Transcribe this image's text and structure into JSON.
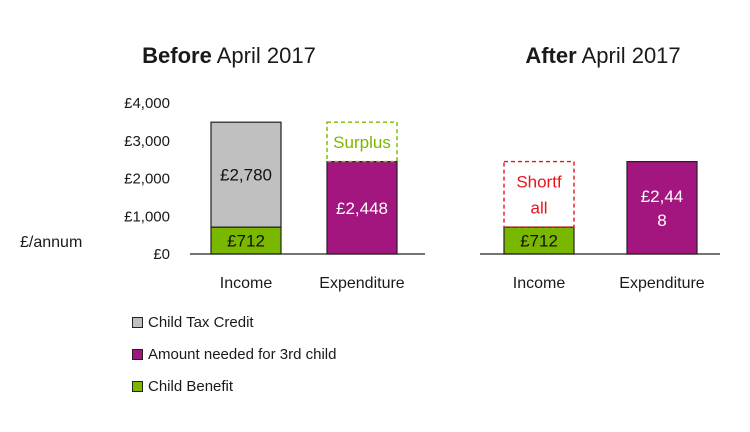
{
  "colors": {
    "child_tax_credit": "#c0c0c0",
    "amount_needed": "#a3157f",
    "child_benefit": "#7ab800",
    "surplus": "#7ab800",
    "shortfall": "#e8141c"
  },
  "y_axis_title": "£/annum",
  "chart_data": [
    {
      "type": "bar",
      "stacked": true,
      "title_bold": "Before",
      "title_rest": " April 2017",
      "categories": [
        "Income",
        "Expenditure"
      ],
      "ylim": [
        0,
        4000
      ],
      "yticks": [
        "£4,000",
        "£3,000",
        "£2,000",
        "£1,000",
        "£0"
      ],
      "series": [
        {
          "name": "Child Benefit",
          "values": [
            712,
            0
          ],
          "labels": [
            "£712",
            ""
          ]
        },
        {
          "name": "Child Tax Credit",
          "values": [
            2780,
            0
          ],
          "labels": [
            "£2,780",
            ""
          ]
        },
        {
          "name": "Amount needed for 3rd child",
          "values": [
            0,
            2448
          ],
          "labels": [
            "",
            "£2,448"
          ]
        }
      ],
      "annotation": {
        "kind": "surplus",
        "text": "Surplus",
        "category": "Expenditure"
      }
    },
    {
      "type": "bar",
      "stacked": true,
      "title_bold": "After",
      "title_rest": " April 2017",
      "categories": [
        "Income",
        "Expenditure"
      ],
      "ylim": [
        0,
        4000
      ],
      "series": [
        {
          "name": "Child Benefit",
          "values": [
            712,
            0
          ],
          "labels": [
            "£712",
            ""
          ]
        },
        {
          "name": "Amount needed for 3rd child",
          "values": [
            0,
            2448
          ],
          "labels": [
            "",
            "£2,44\n8"
          ]
        }
      ],
      "annotation": {
        "kind": "shortfall",
        "text": "Shortf\nall",
        "category": "Income"
      }
    }
  ],
  "legend": [
    {
      "label": "Child Tax Credit",
      "color": "#c0c0c0"
    },
    {
      "label": "Amount needed for 3rd child",
      "color": "#a3157f"
    },
    {
      "label": "Child Benefit",
      "color": "#7ab800"
    }
  ]
}
